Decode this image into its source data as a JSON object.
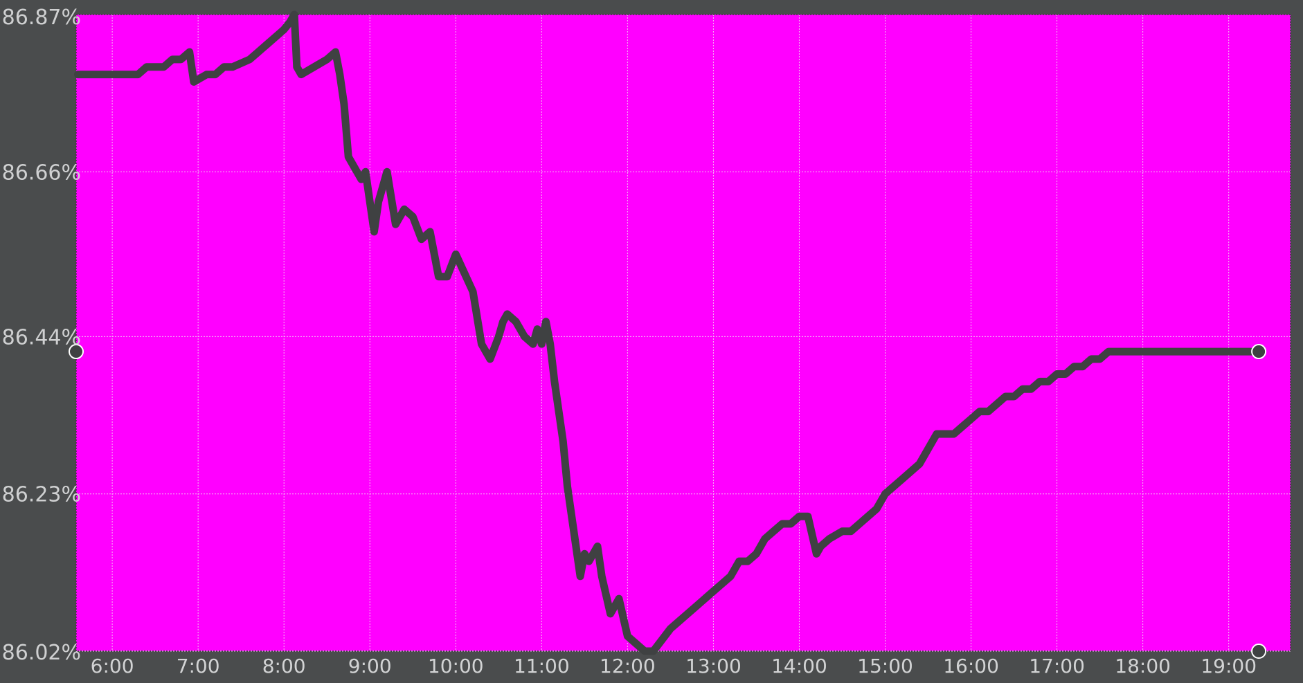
{
  "chart_data": {
    "type": "line",
    "title": "",
    "xlabel": "",
    "ylabel": "",
    "grid": true,
    "legend": "none",
    "colors": {
      "background": "#4a4c4d",
      "plot_background": "#ff00ff",
      "line": "#3f4142",
      "grid": "#f3bdf3",
      "tick_text": "#cfd0d1",
      "marker_fill": "#3f4142",
      "marker_stroke": "#ffffff"
    },
    "y_ticks": [
      {
        "value": 86.02,
        "label": "86.02%"
      },
      {
        "value": 86.23,
        "label": "86.23%"
      },
      {
        "value": 86.44,
        "label": "86.44%"
      },
      {
        "value": 86.66,
        "label": "86.66%"
      },
      {
        "value": 86.87,
        "label": "86.87%"
      }
    ],
    "x_ticks": [
      {
        "value": 6,
        "label": "6:00"
      },
      {
        "value": 7,
        "label": "7:00"
      },
      {
        "value": 8,
        "label": "8:00"
      },
      {
        "value": 9,
        "label": "9:00"
      },
      {
        "value": 10,
        "label": "10:00"
      },
      {
        "value": 11,
        "label": "11:00"
      },
      {
        "value": 12,
        "label": "12:00"
      },
      {
        "value": 13,
        "label": "13:00"
      },
      {
        "value": 14,
        "label": "14:00"
      },
      {
        "value": 15,
        "label": "15:00"
      },
      {
        "value": 16,
        "label": "16:00"
      },
      {
        "value": 17,
        "label": "17:00"
      },
      {
        "value": 18,
        "label": "18:00"
      },
      {
        "value": 19,
        "label": "19:00"
      }
    ],
    "xlim": [
      5.58,
      19.72
    ],
    "ylim": [
      86.02,
      86.87
    ],
    "series": [
      {
        "x": [
          5.6,
          6.3,
          6.4,
          6.6,
          6.7,
          6.8,
          6.9,
          6.95,
          7.1,
          7.2,
          7.3,
          7.4,
          7.6,
          7.7,
          7.8,
          7.9,
          8.0,
          8.07,
          8.12,
          8.15,
          8.2,
          8.35,
          8.5,
          8.6,
          8.65,
          8.7,
          8.75,
          8.85,
          8.9,
          8.95,
          9.05,
          9.1,
          9.2,
          9.3,
          9.4,
          9.5,
          9.6,
          9.7,
          9.8,
          9.9,
          10.0,
          10.2,
          10.3,
          10.4,
          10.5,
          10.55,
          10.6,
          10.7,
          10.8,
          10.9,
          10.95,
          11.0,
          11.05,
          11.1,
          11.15,
          11.2,
          11.25,
          11.3,
          11.4,
          11.45,
          11.5,
          11.55,
          11.65,
          11.7,
          11.8,
          11.85,
          11.9,
          12.0,
          12.1,
          12.2,
          12.3,
          12.5,
          12.6,
          12.7,
          12.8,
          12.9,
          13.0,
          13.1,
          13.2,
          13.3,
          13.4,
          13.5,
          13.6,
          13.7,
          13.8,
          13.9,
          14.0,
          14.1,
          14.2,
          14.25,
          14.35,
          14.5,
          14.6,
          14.7,
          14.8,
          14.9,
          15.0,
          15.1,
          15.2,
          15.3,
          15.4,
          15.5,
          15.6,
          15.7,
          15.8,
          15.9,
          16.0,
          16.1,
          16.2,
          16.3,
          16.4,
          16.5,
          16.6,
          16.7,
          16.8,
          16.9,
          17.0,
          17.1,
          17.2,
          17.3,
          17.4,
          17.5,
          17.6,
          17.7,
          18.0,
          18.5,
          19.0,
          19.35
        ],
        "y": [
          86.79,
          86.79,
          86.8,
          86.8,
          86.81,
          86.81,
          86.82,
          86.78,
          86.79,
          86.79,
          86.8,
          86.8,
          86.81,
          86.82,
          86.83,
          86.84,
          86.85,
          86.86,
          86.87,
          86.8,
          86.79,
          86.8,
          86.81,
          86.82,
          86.79,
          86.75,
          86.68,
          86.66,
          86.65,
          86.66,
          86.58,
          86.62,
          86.66,
          86.59,
          86.61,
          86.6,
          86.57,
          86.58,
          86.52,
          86.52,
          86.55,
          86.5,
          86.43,
          86.41,
          86.44,
          86.46,
          86.47,
          86.46,
          86.44,
          86.43,
          86.45,
          86.43,
          86.46,
          86.43,
          86.38,
          86.34,
          86.3,
          86.24,
          86.16,
          86.12,
          86.15,
          86.14,
          86.16,
          86.12,
          86.07,
          86.08,
          86.09,
          86.04,
          86.03,
          86.02,
          86.02,
          86.05,
          86.06,
          86.07,
          86.08,
          86.09,
          86.1,
          86.11,
          86.12,
          86.14,
          86.14,
          86.15,
          86.17,
          86.18,
          86.19,
          86.19,
          86.2,
          86.2,
          86.15,
          86.16,
          86.17,
          86.18,
          86.18,
          86.19,
          86.2,
          86.21,
          86.23,
          86.24,
          86.25,
          86.26,
          86.27,
          86.29,
          86.31,
          86.31,
          86.31,
          86.32,
          86.33,
          86.34,
          86.34,
          86.35,
          86.36,
          86.36,
          86.37,
          86.37,
          86.38,
          86.38,
          86.39,
          86.39,
          86.4,
          86.4,
          86.41,
          86.41,
          86.42,
          86.42,
          86.42,
          86.42,
          86.42,
          86.42
        ]
      }
    ]
  }
}
